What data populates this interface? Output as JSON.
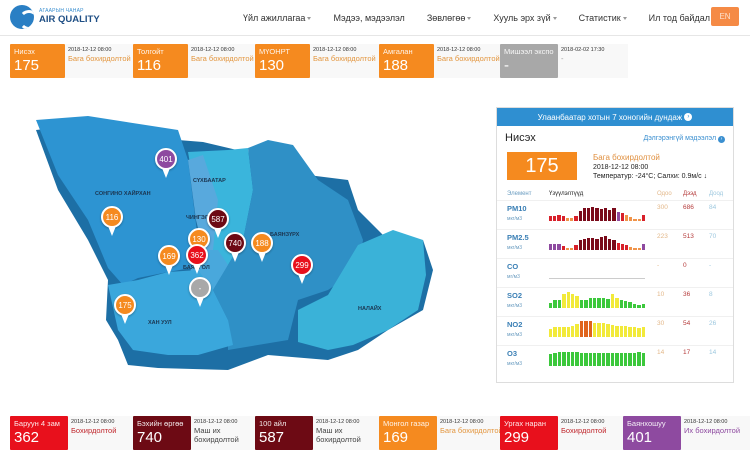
{
  "brand": {
    "subtitle": "АГААРЫН ЧАНАР",
    "title": "AIR QUALITY"
  },
  "nav": {
    "items": [
      {
        "label": "Үйл ажиллагаа",
        "dropdown": true
      },
      {
        "label": "Мэдээ, мэдээлэл",
        "dropdown": false
      },
      {
        "label": "Зөвлөгөө",
        "dropdown": true
      },
      {
        "label": "Хууль эрх зүй",
        "dropdown": true
      },
      {
        "label": "Статистик",
        "dropdown": true
      },
      {
        "label": "Ил тод байдал",
        "dropdown": true
      }
    ],
    "language": "EN"
  },
  "colors": {
    "orange": "#f58a1f",
    "red": "#e8101c",
    "darkred": "#6d0a14",
    "purple": "#8e4aa0",
    "gray": "#a8a8a8",
    "blue": "#2f8fd1"
  },
  "top_stations": [
    {
      "name": "Нисэх",
      "value": "175",
      "time": "2018-12-12 08:00",
      "status": "Бага бохирдолтой",
      "color": "orange"
    },
    {
      "name": "Толгойт",
      "value": "116",
      "time": "2018-12-12 08:00",
      "status": "Бага бохирдолтой",
      "color": "orange"
    },
    {
      "name": "МҮОНРТ",
      "value": "130",
      "time": "2018-12-12 08:00",
      "status": "Бага бохирдолтой",
      "color": "orange"
    },
    {
      "name": "Амгалан",
      "value": "188",
      "time": "2018-12-12 08:00",
      "status": "Бага бохирдолтой",
      "color": "orange"
    },
    {
      "name": "Мишээл экспо",
      "value": "-",
      "time": "2018-02-02 17:30",
      "status": "-",
      "color": "gray"
    }
  ],
  "bottom_stations": [
    {
      "name": "Баруун 4 зам",
      "value": "362",
      "time": "2018-12-12 08:00",
      "status": "Бохирдолтой",
      "color": "red"
    },
    {
      "name": "Бэхийн өргөө",
      "value": "740",
      "time": "2018-12-12 08:00",
      "status": "Маш их бохирдолтой",
      "color": "darkred"
    },
    {
      "name": "100 айл",
      "value": "587",
      "time": "2018-12-12 08:00",
      "status": "Маш их бохирдолтой",
      "color": "darkred"
    },
    {
      "name": "Монгол газар",
      "value": "169",
      "time": "2018-12-12 08:00",
      "status": "Бага бохирдолтой",
      "color": "orange"
    },
    {
      "name": "Ургах наран",
      "value": "299",
      "time": "2018-12-12 08:00",
      "status": "Бохирдолтой",
      "color": "red"
    },
    {
      "name": "Баянхошуу",
      "value": "401",
      "time": "2018-12-12 08:00",
      "status": "Их бохирдолтой",
      "color": "purple"
    }
  ],
  "map": {
    "districts": [
      "СОНГИНО ХАЙРХАН",
      "СҮХБААТАР",
      "ЧИНГЭЛТЭЙ",
      "БАЯНЗҮРХ",
      "БАЯНГОЛ",
      "ХАН УУЛ",
      "НАЛАЙХ"
    ],
    "pins": [
      {
        "value": "401",
        "color": "purple"
      },
      {
        "value": "116",
        "color": "orange"
      },
      {
        "value": "587",
        "color": "darkred"
      },
      {
        "value": "130",
        "color": "orange"
      },
      {
        "value": "740",
        "color": "darkred"
      },
      {
        "value": "188",
        "color": "orange"
      },
      {
        "value": "169",
        "color": "orange"
      },
      {
        "value": "362",
        "color": "red"
      },
      {
        "value": "299",
        "color": "red"
      },
      {
        "value": "-",
        "color": "gray"
      },
      {
        "value": "175",
        "color": "orange"
      }
    ]
  },
  "panel": {
    "header": "Улаанбаатар хотын 7 хоногийн дундаж",
    "station": "Нисэх",
    "more_link": "Дэлгэрэнгүй мэдээлэл",
    "aqi": "175",
    "status": "Бага бохирдолтой",
    "time": "2018-12-12 08:00",
    "weather": "Температур: -24°C; Салхи: 0.9м/с",
    "columns": {
      "element": "Элемент",
      "trend": "Үзүүлэлтүүд",
      "now": "Одоо",
      "max": "Дээд",
      "min": "Доод"
    },
    "rows": [
      {
        "name": "PM10",
        "unit": "мкг/м3",
        "now": "300",
        "max": "686",
        "min": "84",
        "bars": [
          0.3,
          0.3,
          0.35,
          0.3,
          0.2,
          0.2,
          0.3,
          0.6,
          0.8,
          0.8,
          0.85,
          0.8,
          0.75,
          0.8,
          0.7,
          0.8,
          0.55,
          0.5,
          0.35,
          0.25,
          0.1,
          0.1,
          0.35
        ],
        "bar_colors": [
          "r",
          "r",
          "r",
          "r",
          "o",
          "o",
          "r",
          "d",
          "d",
          "d",
          "d",
          "d",
          "d",
          "d",
          "d",
          "d",
          "p",
          "r",
          "o",
          "o",
          "o",
          "o",
          "r"
        ]
      },
      {
        "name": "PM2.5",
        "unit": "мкг/м3",
        "now": "223",
        "max": "513",
        "min": "70",
        "bars": [
          0.35,
          0.4,
          0.35,
          0.25,
          0.15,
          0.15,
          0.3,
          0.6,
          0.7,
          0.75,
          0.75,
          0.7,
          0.8,
          0.85,
          0.7,
          0.6,
          0.45,
          0.4,
          0.3,
          0.2,
          0.1,
          0.15,
          0.35
        ],
        "bar_colors": [
          "p",
          "p",
          "p",
          "r",
          "o",
          "o",
          "r",
          "d",
          "d",
          "d",
          "d",
          "d",
          "d",
          "d",
          "d",
          "d",
          "r",
          "r",
          "r",
          "o",
          "o",
          "o",
          "p"
        ]
      },
      {
        "name": "CO",
        "unit": "мг/м3",
        "now": "-",
        "max": "0",
        "min": "-",
        "bars": [],
        "bar_colors": []
      },
      {
        "name": "SO2",
        "unit": "мкг/м3",
        "now": "10",
        "max": "36",
        "min": "8",
        "bars": [
          0.3,
          0.5,
          0.5,
          0.9,
          1.0,
          0.85,
          0.75,
          0.5,
          0.5,
          0.6,
          0.6,
          0.6,
          0.6,
          0.55,
          0.85,
          0.6,
          0.5,
          0.45,
          0.35,
          0.25,
          0.2,
          0.25
        ],
        "bar_colors": [
          "g",
          "g",
          "g",
          "y",
          "y",
          "y",
          "y",
          "g",
          "g",
          "g",
          "g",
          "g",
          "g",
          "g",
          "y",
          "y",
          "g",
          "g",
          "g",
          "g",
          "g",
          "g"
        ]
      },
      {
        "name": "NO2",
        "unit": "мкг/м3",
        "now": "30",
        "max": "54",
        "min": "26",
        "bars": [
          0.5,
          0.6,
          0.6,
          0.6,
          0.65,
          0.7,
          0.8,
          1.0,
          1.0,
          1.0,
          0.9,
          0.85,
          0.85,
          0.8,
          0.75,
          0.7,
          0.7,
          0.7,
          0.6,
          0.6,
          0.55,
          0.6
        ],
        "bar_colors": [
          "y",
          "y",
          "y",
          "y",
          "y",
          "y",
          "y",
          "or",
          "or",
          "or",
          "y",
          "y",
          "y",
          "y",
          "y",
          "y",
          "y",
          "y",
          "y",
          "y",
          "y",
          "y"
        ]
      },
      {
        "name": "O3",
        "unit": "мкг/м3",
        "now": "14",
        "max": "17",
        "min": "14",
        "bars": [
          0.75,
          0.8,
          0.85,
          0.9,
          0.9,
          0.85,
          0.85,
          0.8,
          0.8,
          0.8,
          0.8,
          0.8,
          0.8,
          0.8,
          0.8,
          0.8,
          0.8,
          0.8,
          0.8,
          0.8,
          0.9,
          0.8
        ],
        "bar_colors": [
          "g",
          "g",
          "g",
          "g",
          "g",
          "g",
          "g",
          "g",
          "g",
          "g",
          "g",
          "g",
          "g",
          "g",
          "g",
          "g",
          "g",
          "g",
          "g",
          "g",
          "g",
          "g"
        ]
      }
    ]
  }
}
